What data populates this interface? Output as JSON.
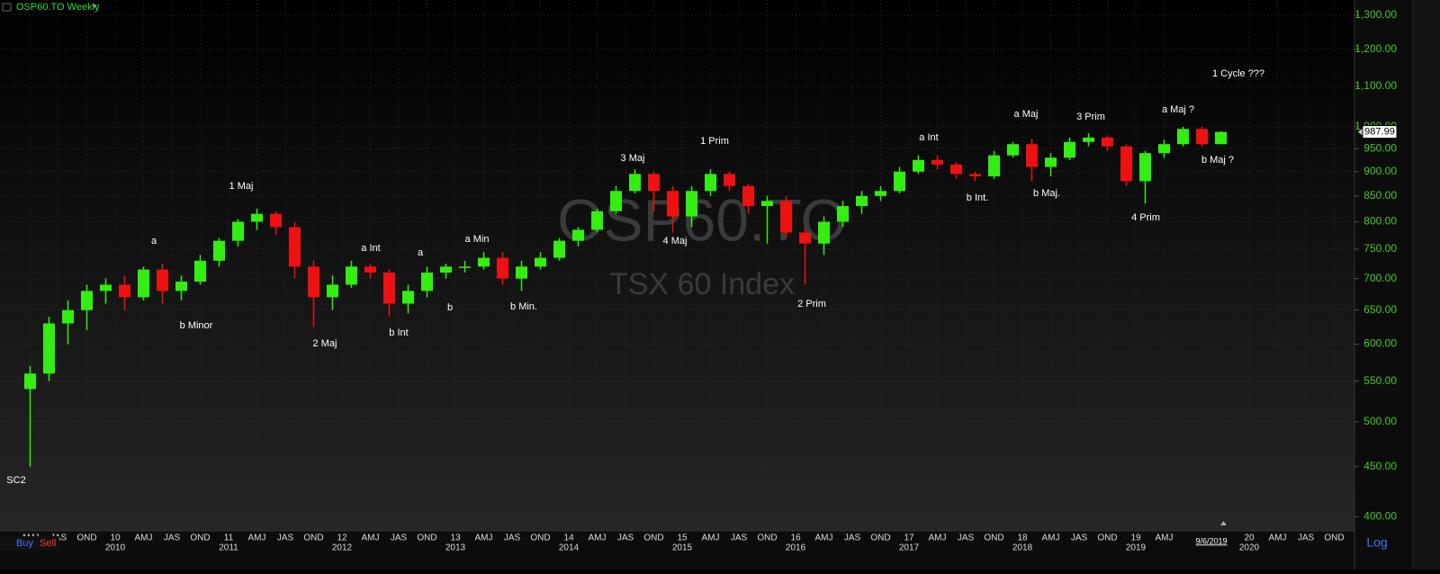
{
  "chart_data": {
    "type": "candlestick",
    "title": "OSP60.TO Weekly",
    "watermark": "OSP60.TO",
    "subtitle": "TSX 60 Index",
    "log_scale": true,
    "grid": true,
    "colors": {
      "up": "#33ee11",
      "down": "#ee1111",
      "axis_text": "#44cc22"
    },
    "x": [
      "2009-03",
      "2009-05",
      "2009-07",
      "2009-09",
      "2009-11",
      "2010-01",
      "2010-03",
      "2010-05",
      "2010-07",
      "2010-09",
      "2010-11",
      "2011-01",
      "2011-03",
      "2011-05",
      "2011-07",
      "2011-09",
      "2011-11",
      "2012-01",
      "2012-03",
      "2012-05",
      "2012-07",
      "2012-09",
      "2012-11",
      "2013-01",
      "2013-03",
      "2013-05",
      "2013-07",
      "2013-09",
      "2013-11",
      "2014-01",
      "2014-03",
      "2014-05",
      "2014-07",
      "2014-09",
      "2014-11",
      "2015-01",
      "2015-03",
      "2015-05",
      "2015-07",
      "2015-09",
      "2015-11",
      "2016-01",
      "2016-03",
      "2016-05",
      "2016-07",
      "2016-09",
      "2016-11",
      "2017-01",
      "2017-03",
      "2017-05",
      "2017-07",
      "2017-09",
      "2017-11",
      "2018-01",
      "2018-03",
      "2018-05",
      "2018-07",
      "2018-09",
      "2018-11",
      "2019-01",
      "2019-03",
      "2019-05",
      "2019-07",
      "2019-09"
    ],
    "open": [
      540,
      560,
      630,
      650,
      680,
      690,
      670,
      715,
      680,
      695,
      730,
      765,
      800,
      815,
      790,
      720,
      670,
      690,
      720,
      710,
      660,
      680,
      710,
      720,
      720,
      735,
      700,
      720,
      735,
      765,
      785,
      820,
      860,
      895,
      860,
      810,
      860,
      895,
      870,
      830,
      840,
      780,
      760,
      800,
      830,
      850,
      860,
      900,
      925,
      915,
      895,
      890,
      935,
      960,
      910,
      930,
      965,
      975,
      955,
      880,
      940,
      960,
      995,
      960
    ],
    "high": [
      570,
      640,
      665,
      690,
      700,
      705,
      720,
      725,
      705,
      740,
      770,
      805,
      825,
      820,
      800,
      730,
      705,
      730,
      725,
      715,
      690,
      720,
      725,
      730,
      745,
      745,
      730,
      745,
      770,
      790,
      825,
      870,
      905,
      900,
      870,
      870,
      905,
      900,
      875,
      850,
      850,
      790,
      810,
      840,
      860,
      870,
      910,
      935,
      935,
      920,
      900,
      945,
      965,
      972,
      940,
      975,
      985,
      980,
      960,
      945,
      970,
      1000,
      1000,
      990
    ],
    "low": [
      450,
      550,
      600,
      620,
      660,
      650,
      665,
      660,
      665,
      690,
      720,
      755,
      785,
      775,
      700,
      625,
      650,
      685,
      700,
      640,
      645,
      670,
      700,
      710,
      715,
      690,
      680,
      715,
      730,
      755,
      780,
      815,
      855,
      820,
      780,
      790,
      850,
      860,
      815,
      760,
      770,
      690,
      740,
      790,
      815,
      840,
      855,
      895,
      905,
      885,
      880,
      885,
      930,
      880,
      890,
      925,
      955,
      945,
      870,
      835,
      930,
      955,
      955,
      960
    ],
    "close": [
      560,
      630,
      650,
      680,
      690,
      670,
      715,
      680,
      695,
      730,
      765,
      800,
      815,
      790,
      720,
      670,
      690,
      720,
      710,
      660,
      680,
      710,
      720,
      720,
      735,
      700,
      720,
      735,
      765,
      785,
      820,
      860,
      895,
      860,
      810,
      860,
      895,
      870,
      830,
      840,
      780,
      760,
      800,
      830,
      850,
      860,
      900,
      925,
      915,
      895,
      890,
      935,
      960,
      910,
      930,
      965,
      975,
      955,
      880,
      940,
      960,
      995,
      960,
      987.99
    ],
    "ylim": [
      387,
      1347
    ],
    "yticks": [
      {
        "value": 1300,
        "label": "1,300.00"
      },
      {
        "value": 1200,
        "label": "1,200.00"
      },
      {
        "value": 1100,
        "label": "1,100.00"
      },
      {
        "value": 1000,
        "label": "1,000.00"
      },
      {
        "value": 950,
        "label": "950.00"
      },
      {
        "value": 900,
        "label": "900.00"
      },
      {
        "value": 850,
        "label": "850.00"
      },
      {
        "value": 800,
        "label": "800.00"
      },
      {
        "value": 750,
        "label": "750.00"
      },
      {
        "value": 700,
        "label": "700.00"
      },
      {
        "value": 650,
        "label": "650.00"
      },
      {
        "value": 600,
        "label": "600.00"
      },
      {
        "value": 550,
        "label": "550.00"
      },
      {
        "value": 500,
        "label": "500.00"
      },
      {
        "value": 450,
        "label": "450.00"
      },
      {
        "value": 400,
        "label": "400.00"
      }
    ],
    "xticks": [
      {
        "value": "2009-04",
        "label": "AMJ"
      },
      {
        "value": "2009-07",
        "label": "JAS"
      },
      {
        "value": "2009-10",
        "label": "OND"
      },
      {
        "value": "2010-01",
        "label": "10"
      },
      {
        "value": "2010-04",
        "label": "AMJ"
      },
      {
        "value": "2010-07",
        "label": "JAS"
      },
      {
        "value": "2010-10",
        "label": "OND"
      },
      {
        "value": "2011-01",
        "label": "11"
      },
      {
        "value": "2011-04",
        "label": "AMJ"
      },
      {
        "value": "2011-07",
        "label": "JAS"
      },
      {
        "value": "2011-10",
        "label": "OND"
      },
      {
        "value": "2012-01",
        "label": "12"
      },
      {
        "value": "2012-04",
        "label": "AMJ"
      },
      {
        "value": "2012-07",
        "label": "JAS"
      },
      {
        "value": "2012-10",
        "label": "OND"
      },
      {
        "value": "2013-01",
        "label": "13"
      },
      {
        "value": "2013-04",
        "label": "AMJ"
      },
      {
        "value": "2013-07",
        "label": "JAS"
      },
      {
        "value": "2013-10",
        "label": "OND"
      },
      {
        "value": "2014-01",
        "label": "14"
      },
      {
        "value": "2014-04",
        "label": "AMJ"
      },
      {
        "value": "2014-07",
        "label": "JAS"
      },
      {
        "value": "2014-10",
        "label": "OND"
      },
      {
        "value": "2015-01",
        "label": "15"
      },
      {
        "value": "2015-04",
        "label": "AMJ"
      },
      {
        "value": "2015-07",
        "label": "JAS"
      },
      {
        "value": "2015-10",
        "label": "OND"
      },
      {
        "value": "2016-01",
        "label": "16"
      },
      {
        "value": "2016-04",
        "label": "AMJ"
      },
      {
        "value": "2016-07",
        "label": "JAS"
      },
      {
        "value": "2016-10",
        "label": "OND"
      },
      {
        "value": "2017-01",
        "label": "17"
      },
      {
        "value": "2017-04",
        "label": "AMJ"
      },
      {
        "value": "2017-07",
        "label": "JAS"
      },
      {
        "value": "2017-10",
        "label": "OND"
      },
      {
        "value": "2018-01",
        "label": "18"
      },
      {
        "value": "2018-04",
        "label": "AMJ"
      },
      {
        "value": "2018-07",
        "label": "JAS"
      },
      {
        "value": "2018-10",
        "label": "OND"
      },
      {
        "value": "2019-01",
        "label": "19"
      },
      {
        "value": "2019-04",
        "label": "AMJ"
      },
      {
        "value": "2020-01",
        "label": "20"
      },
      {
        "value": "2020-04",
        "label": "AMJ"
      },
      {
        "value": "2020-07",
        "label": "JAS"
      },
      {
        "value": "2020-10",
        "label": "OND"
      }
    ],
    "x_years": [
      {
        "value": "2010-01",
        "label": "2010"
      },
      {
        "value": "2011-01",
        "label": "2011"
      },
      {
        "value": "2012-01",
        "label": "2012"
      },
      {
        "value": "2013-01",
        "label": "2013"
      },
      {
        "value": "2014-01",
        "label": "2014"
      },
      {
        "value": "2015-01",
        "label": "2015"
      },
      {
        "value": "2016-01",
        "label": "2016"
      },
      {
        "value": "2017-01",
        "label": "2017"
      },
      {
        "value": "2018-01",
        "label": "2018"
      },
      {
        "value": "2019-01",
        "label": "2019"
      },
      {
        "value": "2020-01",
        "label": "2020"
      }
    ],
    "date_marker": "9/6/2019",
    "annotations": [
      "SC2",
      "a",
      "b Minor",
      "1 Maj",
      "2 Maj",
      "a Int",
      "b Int",
      "a",
      "b",
      "a Min",
      "b Min.",
      "3 Maj",
      "4 Maj",
      "1 Prim",
      "2 Prim",
      "a Int",
      "b Int.",
      "a Maj",
      "b Maj.",
      "3 Prim",
      "4 Prim",
      "a Maj ?",
      "b Maj ?",
      "1 Cycle ???"
    ],
    "scale_button": "Log",
    "buttons": [
      "Buy",
      "Sell"
    ]
  }
}
